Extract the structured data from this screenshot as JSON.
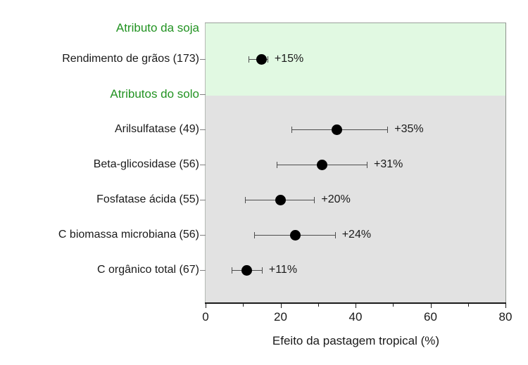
{
  "chart_data": {
    "type": "scatter",
    "subtype": "dot-plot-with-error-bars",
    "title": "",
    "xlabel": "Efeito da pastagem tropical (%)",
    "xlim": [
      0,
      80
    ],
    "x_major_ticks": [
      0,
      20,
      40,
      60,
      80
    ],
    "x_minor_ticks": [
      10,
      30,
      50,
      70
    ],
    "grid": false,
    "legend": false,
    "rows": [
      {
        "kind": "header",
        "label": "Atributo da soja"
      },
      {
        "kind": "data",
        "label": "Rendimento de grãos (173)",
        "mean": 15,
        "ci": [
          11.5,
          16.5
        ],
        "annotation": "+15%"
      },
      {
        "kind": "header",
        "label": "Atributos do solo"
      },
      {
        "kind": "data",
        "label": "Arilsulfatase (49)",
        "mean": 35,
        "ci": [
          23,
          48.5
        ],
        "annotation": "+35%"
      },
      {
        "kind": "data",
        "label": "Beta-glicosidase (56)",
        "mean": 31,
        "ci": [
          19,
          43
        ],
        "annotation": "+31%"
      },
      {
        "kind": "data",
        "label": "Fosfatase ácida (55)",
        "mean": 20,
        "ci": [
          10.5,
          29
        ],
        "annotation": "+20%"
      },
      {
        "kind": "data",
        "label": "C biomassa microbiana (56)",
        "mean": 24,
        "ci": [
          13,
          34.5
        ],
        "annotation": "+24%"
      },
      {
        "kind": "data",
        "label": "C orgânico total (67)",
        "mean": 11,
        "ci": [
          7,
          15
        ],
        "annotation": "+11%"
      }
    ],
    "bands": [
      {
        "name": "soja-band",
        "color": "#e1f9e2"
      },
      {
        "name": "solo-band",
        "color": "#e2e2e2"
      }
    ],
    "colors": {
      "header_text": "#229322",
      "marker": "#000000",
      "error_bar": "#4d4d4d",
      "axis": "#1a1a1a",
      "frame": "#9aa09a",
      "label_text": "#1a1a1a"
    }
  }
}
